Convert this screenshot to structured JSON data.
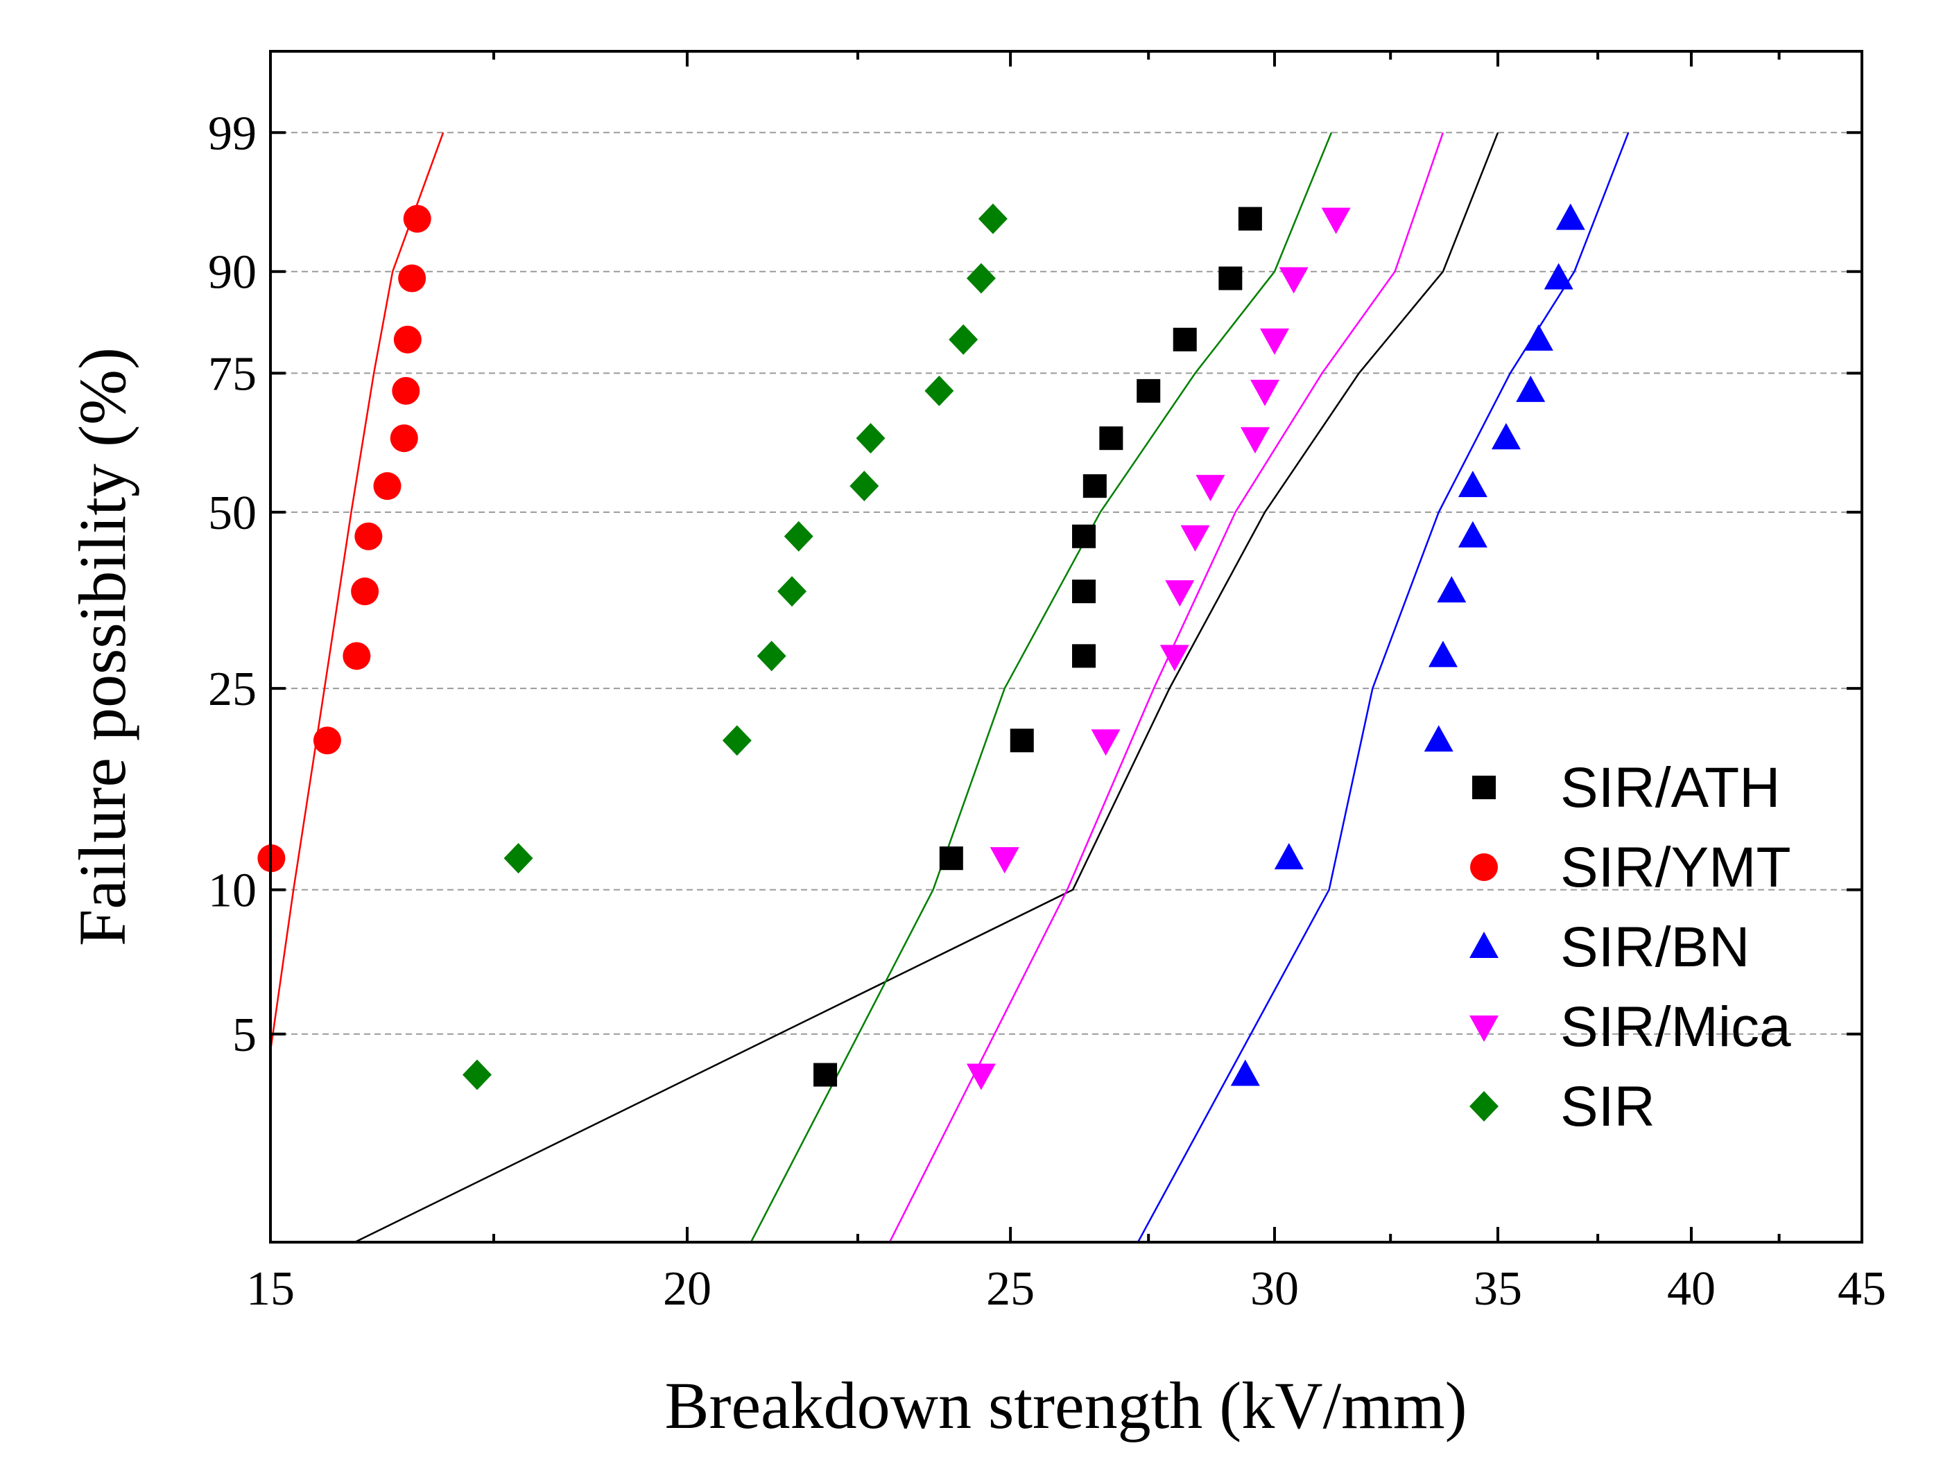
{
  "chart_data": {
    "type": "scatter",
    "title": "",
    "xlabel": "Breakdown strength (kV/mm)",
    "ylabel": "Failure possibility (%)",
    "x_scale": "log",
    "y_scale": "weibull",
    "xlim": [
      15,
      45
    ],
    "ylim": [
      1.8,
      99.9
    ],
    "x_ticks": [
      15,
      20,
      25,
      30,
      35,
      40,
      45
    ],
    "y_ticks": [
      5,
      10,
      25,
      50,
      75,
      90,
      99
    ],
    "y_gridlines": true,
    "legend_position": "bottom-right",
    "series": [
      {
        "name": "SIR/ATH",
        "color": "#000000",
        "marker": "square",
        "points": [
          [
            22,
            4.1
          ],
          [
            24,
            11.6
          ],
          [
            25.2,
            19.9
          ],
          [
            26.3,
            28.7
          ],
          [
            26.3,
            37.3
          ],
          [
            26.3,
            45.9
          ],
          [
            26.5,
            54.6
          ],
          [
            26.8,
            63.3
          ],
          [
            27.5,
            71.9
          ],
          [
            28.2,
            80.6
          ],
          [
            29.1,
            89.2
          ],
          [
            29.5,
            95
          ]
        ],
        "fit": {
          "x": [
            15.9,
            26.1,
            27.9,
            29.8,
            31.8,
            33.7,
            35.0
          ],
          "y": [
            1.8,
            10,
            25,
            50,
            75,
            90,
            99
          ]
        }
      },
      {
        "name": "SIR/YMT",
        "color": "#ff0000",
        "marker": "circle",
        "points": [
          [
            15.01,
            11.6
          ],
          [
            15.6,
            19.9
          ],
          [
            15.92,
            28.7
          ],
          [
            16.01,
            37.3
          ],
          [
            16.05,
            45.9
          ],
          [
            16.26,
            54.6
          ],
          [
            16.45,
            63.3
          ],
          [
            16.47,
            71.9
          ],
          [
            16.49,
            80.6
          ],
          [
            16.54,
            89.2
          ],
          [
            16.6,
            95
          ]
        ],
        "fit": {
          "x": [
            14.72,
            15.24,
            15.57,
            15.86,
            16.11,
            16.32,
            16.9
          ],
          "y": [
            1.8,
            10,
            25,
            50,
            75,
            90,
            99
          ]
        }
      },
      {
        "name": "SIR/BN",
        "color": "#0000ff",
        "marker": "triangle-up",
        "points": [
          [
            29.4,
            4.1
          ],
          [
            30.3,
            11.6
          ],
          [
            33.6,
            19.9
          ],
          [
            33.7,
            28.7
          ],
          [
            33.9,
            37.3
          ],
          [
            34.4,
            45.9
          ],
          [
            34.4,
            54.6
          ],
          [
            35.2,
            63.3
          ],
          [
            35.8,
            71.9
          ],
          [
            36.0,
            80.6
          ],
          [
            36.5,
            89.2
          ],
          [
            36.8,
            95
          ]
        ],
        "fit": {
          "x": [
            27.3,
            31.15,
            32.1,
            33.6,
            35.3,
            36.9,
            38.3
          ],
          "y": [
            1.8,
            10,
            25,
            50,
            75,
            90,
            99
          ]
        }
      },
      {
        "name": "SIR/Mica",
        "color": "#ff00ff",
        "marker": "triangle-down",
        "points": [
          [
            24.5,
            4.1
          ],
          [
            24.9,
            11.6
          ],
          [
            26.7,
            19.9
          ],
          [
            28.0,
            28.7
          ],
          [
            28.1,
            37.3
          ],
          [
            28.4,
            45.9
          ],
          [
            28.7,
            54.6
          ],
          [
            29.6,
            63.3
          ],
          [
            29.8,
            71.9
          ],
          [
            30.0,
            80.6
          ],
          [
            30.4,
            89.2
          ],
          [
            31.3,
            95
          ]
        ],
        "fit": {
          "x": [
            23.0,
            26.0,
            27.6,
            29.2,
            31.0,
            32.6,
            33.7
          ],
          "y": [
            1.8,
            10,
            25,
            50,
            75,
            90,
            99
          ]
        }
      },
      {
        "name": "SIR",
        "color": "#008000",
        "marker": "diamond",
        "points": [
          [
            17.3,
            4.1
          ],
          [
            17.8,
            11.6
          ],
          [
            20.7,
            19.9
          ],
          [
            21.2,
            28.7
          ],
          [
            21.5,
            37.3
          ],
          [
            21.6,
            45.9
          ],
          [
            22.6,
            54.6
          ],
          [
            22.7,
            63.3
          ],
          [
            23.8,
            71.9
          ],
          [
            24.2,
            80.6
          ],
          [
            24.5,
            89.2
          ],
          [
            24.7,
            95
          ]
        ],
        "fit": {
          "x": [
            20.9,
            23.7,
            24.9,
            26.6,
            28.4,
            30.0,
            31.2
          ],
          "y": [
            1.8,
            10,
            25,
            50,
            75,
            90,
            99
          ]
        }
      }
    ]
  }
}
